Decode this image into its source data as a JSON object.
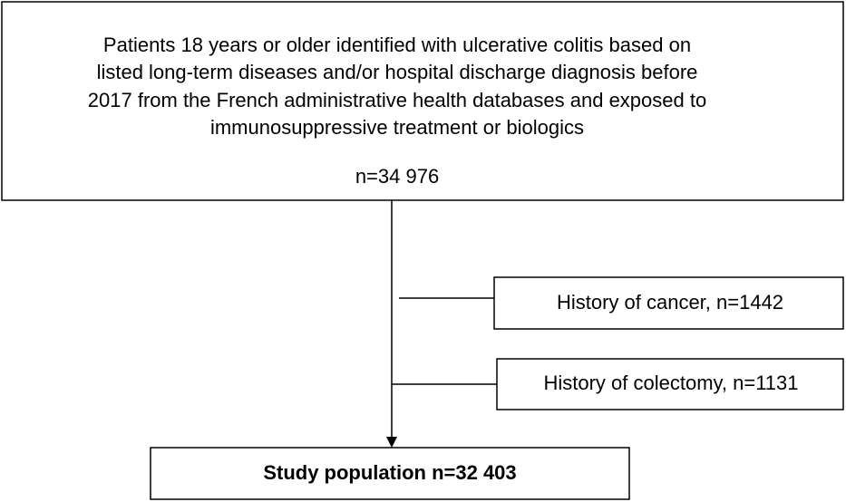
{
  "nodes": [
    {
      "lines": [
        "Patients 18 years or older identified with ulcerative colitis based on",
        "listed long-term diseases and/or hospital discharge diagnosis before",
        "2017 from the French administrative health databases and exposed to",
        "immunosuppressive treatment or biologics"
      ],
      "count": "n=34 976"
    },
    {
      "label": "History of cancer, n=1442"
    },
    {
      "label": "History of colectomy, n=1131"
    },
    {
      "label": "Study population n=32 403"
    }
  ]
}
